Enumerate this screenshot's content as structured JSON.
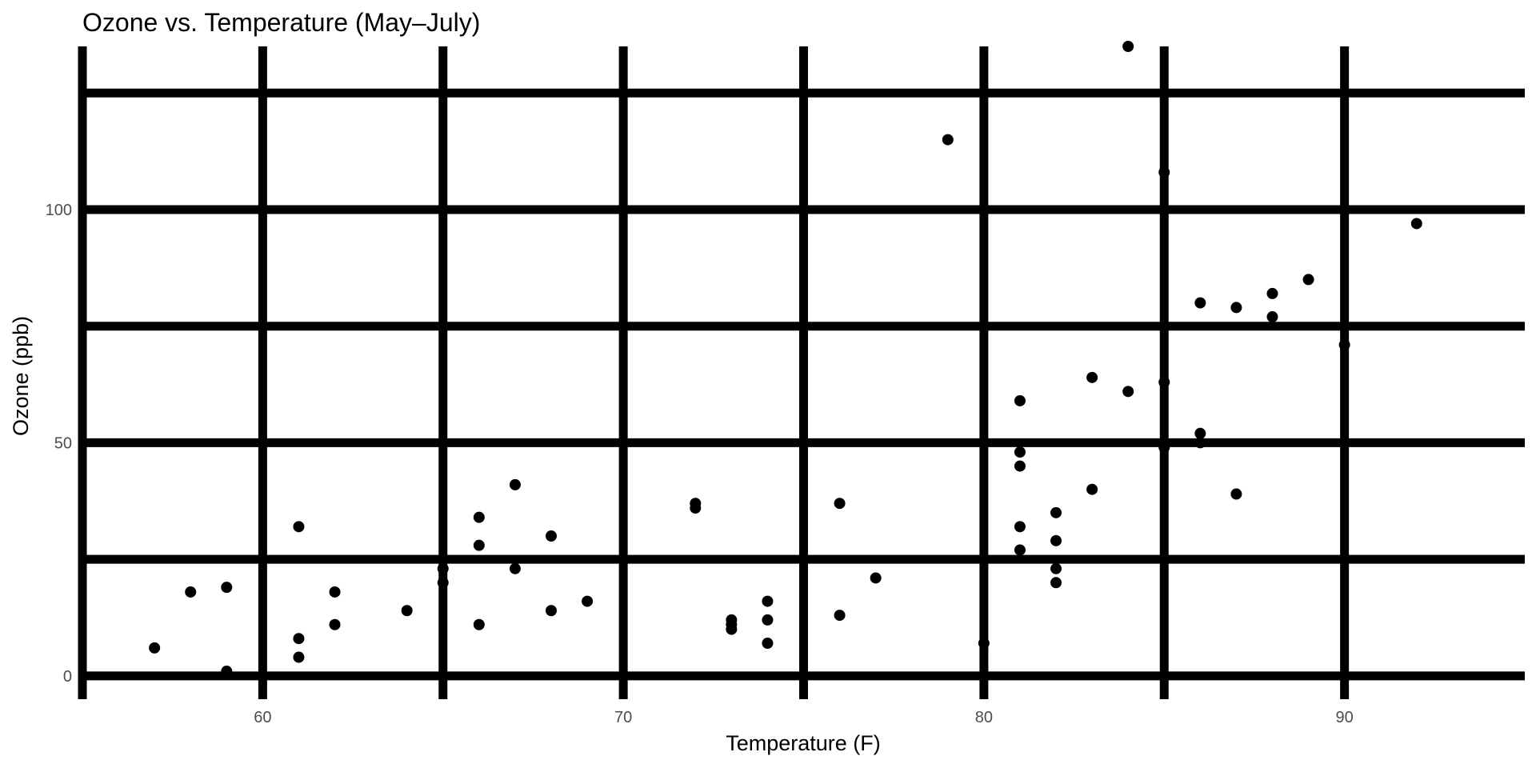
{
  "chart_data": {
    "type": "scatter",
    "title": "Ozone vs. Temperature (May–July)",
    "xlabel": "Temperature (F)",
    "ylabel": "Ozone (ppb)",
    "xlim": [
      55,
      95
    ],
    "ylim": [
      -5,
      135
    ],
    "x_ticks": [
      60,
      70,
      80,
      90
    ],
    "y_ticks": [
      0,
      50,
      100
    ],
    "x_grid": [
      55,
      60,
      65,
      70,
      75,
      80,
      85,
      90
    ],
    "y_grid": [
      0,
      25,
      50,
      75,
      100,
      125
    ],
    "grid": true,
    "point_color": "#000000",
    "points": [
      [
        57,
        6
      ],
      [
        58,
        18
      ],
      [
        59,
        19
      ],
      [
        59,
        1
      ],
      [
        61,
        32
      ],
      [
        61,
        8
      ],
      [
        61,
        4
      ],
      [
        62,
        18
      ],
      [
        62,
        11
      ],
      [
        64,
        14
      ],
      [
        65,
        23
      ],
      [
        65,
        20
      ],
      [
        66,
        34
      ],
      [
        66,
        28
      ],
      [
        66,
        11
      ],
      [
        67,
        41
      ],
      [
        67,
        23
      ],
      [
        68,
        30
      ],
      [
        68,
        14
      ],
      [
        69,
        16
      ],
      [
        72,
        37
      ],
      [
        72,
        36
      ],
      [
        73,
        12
      ],
      [
        73,
        11
      ],
      [
        73,
        10
      ],
      [
        74,
        16
      ],
      [
        74,
        12
      ],
      [
        74,
        7
      ],
      [
        76,
        37
      ],
      [
        76,
        13
      ],
      [
        77,
        21
      ],
      [
        79,
        115
      ],
      [
        80,
        7
      ],
      [
        81,
        59
      ],
      [
        81,
        48
      ],
      [
        81,
        45
      ],
      [
        81,
        32
      ],
      [
        81,
        27
      ],
      [
        82,
        35
      ],
      [
        82,
        29
      ],
      [
        82,
        23
      ],
      [
        82,
        20
      ],
      [
        83,
        64
      ],
      [
        83,
        40
      ],
      [
        84,
        135
      ],
      [
        84,
        61
      ],
      [
        85,
        108
      ],
      [
        85,
        63
      ],
      [
        85,
        49
      ],
      [
        86,
        80
      ],
      [
        86,
        52
      ],
      [
        86,
        50
      ],
      [
        87,
        79
      ],
      [
        87,
        39
      ],
      [
        88,
        82
      ],
      [
        88,
        77
      ],
      [
        89,
        85
      ],
      [
        90,
        71
      ],
      [
        92,
        97
      ]
    ]
  }
}
